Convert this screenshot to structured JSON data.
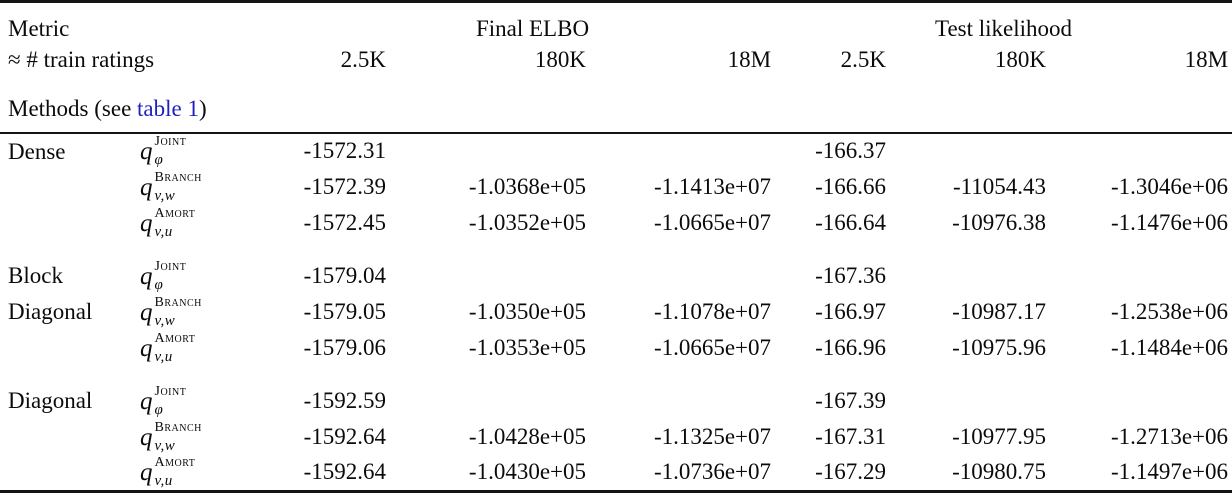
{
  "table": {
    "link_color": "#2222bb",
    "header": {
      "metric_label": "Metric",
      "ratings_label": "≈ # train ratings",
      "group1": "Final ELBO",
      "group2": "Test likelihood",
      "sizes": [
        "2.5K",
        "180K",
        "18M",
        "2.5K",
        "180K",
        "18M"
      ]
    },
    "methods_caption": {
      "prefix": "Methods (see ",
      "link": "table 1",
      "suffix": ")"
    },
    "groups": [
      {
        "name": "Dense",
        "rows": [
          {
            "method": {
              "base": "q",
              "sup": "Joint",
              "sub": "φ"
            },
            "values": [
              "-1572.31",
              "",
              "",
              "-166.37",
              "",
              ""
            ]
          },
          {
            "method": {
              "base": "q",
              "sup": "Branch",
              "sub": "v,w"
            },
            "values": [
              "-1572.39",
              "-1.0368e+05",
              "-1.1413e+07",
              "-166.66",
              "-11054.43",
              "-1.3046e+06"
            ]
          },
          {
            "method": {
              "base": "q",
              "sup": "Amort",
              "sub": "v,u"
            },
            "values": [
              "-1572.45",
              "-1.0352e+05",
              "-1.0665e+07",
              "-166.64",
              "-10976.38",
              "-1.1476e+06"
            ]
          }
        ]
      },
      {
        "name": "Block Diagonal",
        "rows": [
          {
            "method": {
              "base": "q",
              "sup": "Joint",
              "sub": "φ"
            },
            "values": [
              "-1579.04",
              "",
              "",
              "-167.36",
              "",
              ""
            ]
          },
          {
            "method": {
              "base": "q",
              "sup": "Branch",
              "sub": "v,w"
            },
            "values": [
              "-1579.05",
              "-1.0350e+05",
              "-1.1078e+07",
              "-166.97",
              "-10987.17",
              "-1.2538e+06"
            ]
          },
          {
            "method": {
              "base": "q",
              "sup": "Amort",
              "sub": "v,u"
            },
            "values": [
              "-1579.06",
              "-1.0353e+05",
              "-1.0665e+07",
              "-166.96",
              "-10975.96",
              "-1.1484e+06"
            ]
          }
        ]
      },
      {
        "name": "Diagonal",
        "rows": [
          {
            "method": {
              "base": "q",
              "sup": "Joint",
              "sub": "φ"
            },
            "values": [
              "-1592.59",
              "",
              "",
              "-167.39",
              "",
              ""
            ]
          },
          {
            "method": {
              "base": "q",
              "sup": "Branch",
              "sub": "v,w"
            },
            "values": [
              "-1592.64",
              "-1.0428e+05",
              "-1.1325e+07",
              "-167.31",
              "-10977.95",
              "-1.2713e+06"
            ]
          },
          {
            "method": {
              "base": "q",
              "sup": "Amort",
              "sub": "v,u"
            },
            "values": [
              "-1592.64",
              "-1.0430e+05",
              "-1.0736e+07",
              "-167.29",
              "-10980.75",
              "-1.1497e+06"
            ]
          }
        ]
      }
    ]
  }
}
